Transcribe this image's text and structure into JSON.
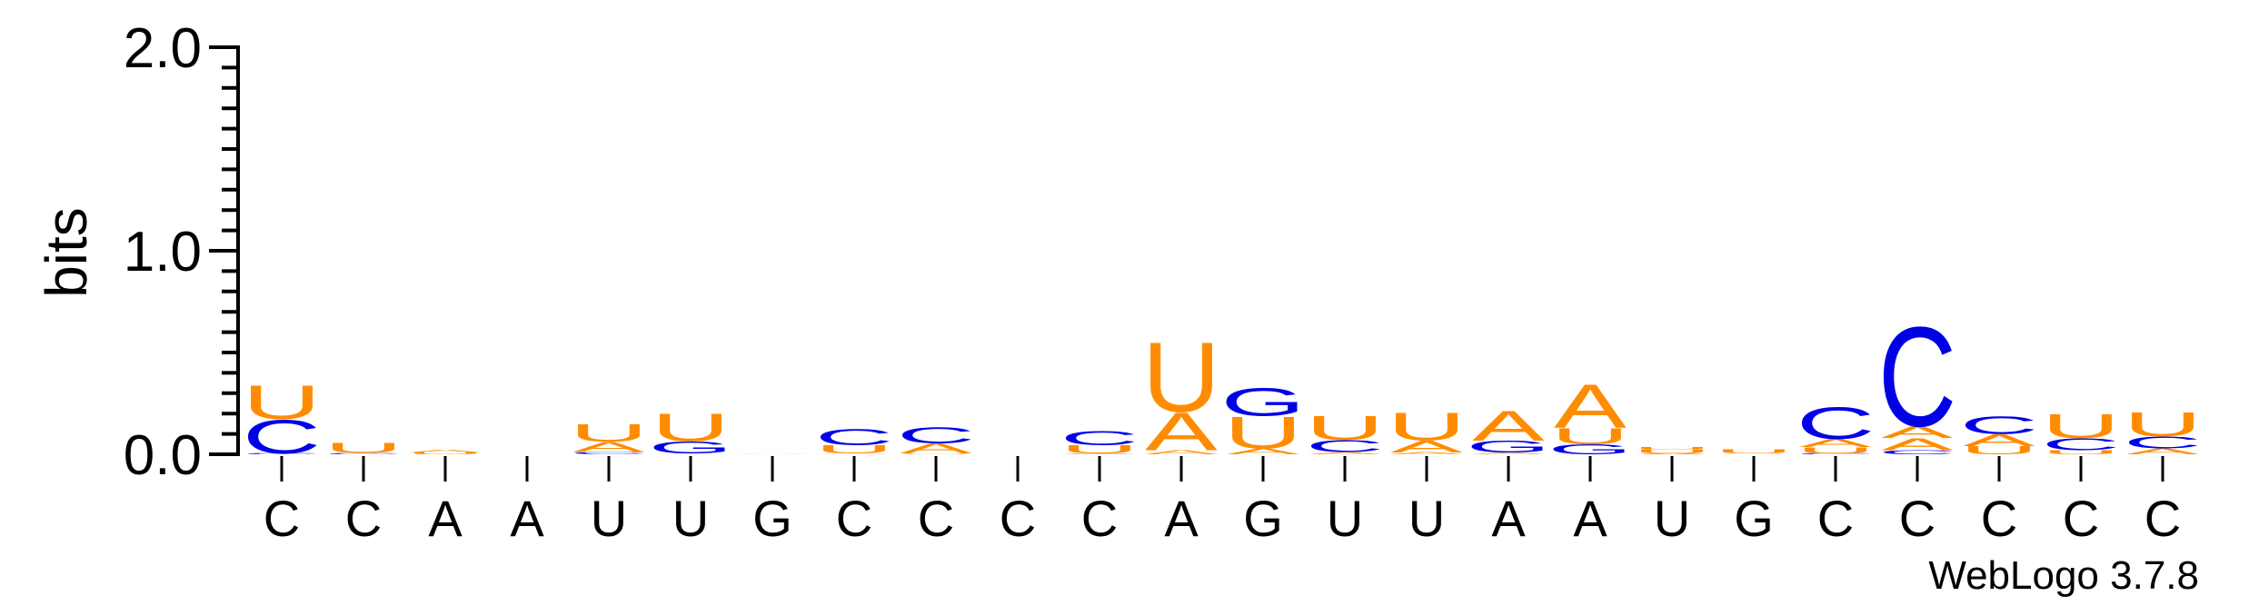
{
  "chart_data": {
    "type": "sequence-logo",
    "ylabel": "bits",
    "ylim": [
      0,
      2.0
    ],
    "yticks": [
      "0.0",
      "1.0",
      "2.0"
    ],
    "x_labels": [
      "C",
      "C",
      "A",
      "A",
      "U",
      "U",
      "G",
      "C",
      "C",
      "C",
      "C",
      "A",
      "G",
      "U",
      "U",
      "A",
      "A",
      "U",
      "G",
      "C",
      "C",
      "C",
      "C",
      "C"
    ],
    "credit": "WebLogo 3.7.8",
    "colors": {
      "C": "#0000e6",
      "U": "#ff8c00",
      "A": "#ff8c00",
      "G": "#0000e6",
      "axis": "#000000"
    },
    "stacks": [
      [
        [
          "C",
          0.005
        ],
        [
          "C",
          0.17
        ],
        [
          "U",
          0.17
        ]
      ],
      [
        [
          "C",
          0.006
        ],
        [
          "U",
          0.05
        ]
      ],
      [
        [
          "U",
          0.01
        ],
        [
          "A",
          0.015
        ]
      ],
      [],
      [
        [
          "C",
          0.012
        ],
        [
          "A",
          0.05
        ],
        [
          "U",
          0.09
        ]
      ],
      [
        [
          "A",
          0.004
        ],
        [
          "G",
          0.06
        ],
        [
          "U",
          0.14
        ]
      ],
      [
        [
          "A",
          0.004
        ]
      ],
      [
        [
          "A",
          0.004
        ],
        [
          "U",
          0.04
        ],
        [
          "C",
          0.08
        ]
      ],
      [
        [
          "U",
          0.004
        ],
        [
          "A",
          0.05
        ],
        [
          "C",
          0.08
        ]
      ],
      [],
      [
        [
          "C",
          0.004
        ],
        [
          "U",
          0.04
        ],
        [
          "C",
          0.07
        ]
      ],
      [
        [
          "A",
          0.02
        ],
        [
          "A",
          0.19
        ],
        [
          "U",
          0.35
        ]
      ],
      [
        [
          "A",
          0.03
        ],
        [
          "U",
          0.16
        ],
        [
          "G",
          0.14
        ]
      ],
      [
        [
          "A",
          0.012
        ],
        [
          "C",
          0.06
        ],
        [
          "U",
          0.12
        ]
      ],
      [
        [
          "A",
          0.01
        ],
        [
          "A",
          0.06
        ],
        [
          "U",
          0.14
        ]
      ],
      [
        [
          "A",
          0.008
        ],
        [
          "G",
          0.06
        ],
        [
          "A",
          0.15
        ]
      ],
      [
        [
          "G",
          0.05
        ],
        [
          "U",
          0.08
        ],
        [
          "A",
          0.22
        ]
      ],
      [
        [
          "A",
          0.005
        ],
        [
          "U",
          0.02
        ],
        [
          "U",
          0.01
        ]
      ],
      [
        [
          "A",
          0.004
        ],
        [
          "U",
          0.02
        ]
      ],
      [
        [
          "C",
          0.005
        ],
        [
          "U",
          0.03
        ],
        [
          "A",
          0.04
        ],
        [
          "C",
          0.16
        ]
      ],
      [
        [
          "C",
          0.02
        ],
        [
          "A",
          0.06
        ],
        [
          "A",
          0.06
        ],
        [
          "C",
          0.5
        ]
      ],
      [
        [
          "U",
          0.04
        ],
        [
          "A",
          0.06
        ],
        [
          "C",
          0.09
        ]
      ],
      [
        [
          "U",
          0.02
        ],
        [
          "C",
          0.06
        ],
        [
          "U",
          0.12
        ]
      ],
      [
        [
          "A",
          0.03
        ],
        [
          "C",
          0.06
        ],
        [
          "U",
          0.12
        ]
      ]
    ]
  }
}
